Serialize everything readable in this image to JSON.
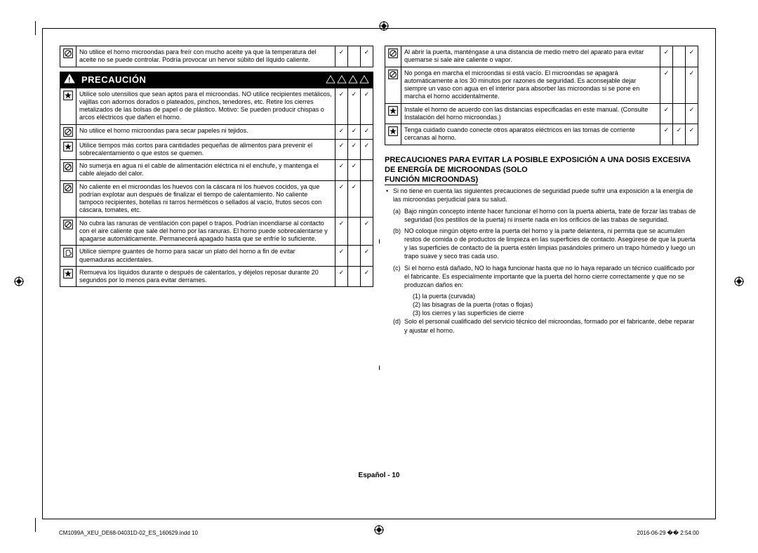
{
  "left_top_row": {
    "icon": "prohibit",
    "text": "No utilice el horno microondas para freír con mucho aceite ya que la temperatura del aceite no se puede controlar. Podría provocar un hervor súbito del líquido caliente.",
    "ticks": [
      "✓",
      "",
      "✓"
    ]
  },
  "caution_label": "PRECAUCIÓN",
  "left_rows": [
    {
      "icon": "star",
      "text": "Utilice solo utensilios que sean aptos para el microondas. NO utilice recipientes metálicos, vajillas con adornos dorados o plateados, pinchos, tenedores, etc.\nRetire los cierres metalizados de las bolsas de papel o de plástico.\nMotivo: Se pueden producir chispas o arcos eléctricos que dañen el horno.",
      "ticks": [
        "✓",
        "✓",
        "✓"
      ]
    },
    {
      "icon": "prohibit",
      "text": "No utilice el horno microondas para secar papeles ni tejidos.",
      "ticks": [
        "✓",
        "✓",
        "✓"
      ]
    },
    {
      "icon": "star",
      "text": "Utilice tiempos más cortos para cantidades pequeñas de alimentos para prevenir el sobrecalentamiento o que estos se quemen.",
      "ticks": [
        "✓",
        "✓",
        "✓"
      ]
    },
    {
      "icon": "prohibit",
      "text": "No sumerja en agua ni el cable de alimentación eléctrica ni el enchufe, y mantenga el cable alejado del calor.",
      "ticks": [
        "✓",
        "✓",
        ""
      ]
    },
    {
      "icon": "prohibit",
      "text": "No caliente en el microondas los huevos con la cáscara ni los huevos cocidos, ya que podrían explotar aun después de finalizar el tiempo de calentamiento. No caliente tampoco recipientes, botellas ni tarros herméticos o sellados al vacío, frutos secos con cáscara, tomates, etc.",
      "ticks": [
        "✓",
        "✓",
        ""
      ]
    },
    {
      "icon": "prohibit",
      "text": "No cubra las ranuras de ventilación con papel o trapos. Podrían incendiarse al contacto con el aire caliente que sale del horno por las ranuras. El horno puede sobrecalentarse y apagarse automáticamente. Permanecerá apagado hasta que se enfríe lo suficiente.",
      "ticks": [
        "✓",
        "",
        "✓"
      ]
    },
    {
      "icon": "glove",
      "text": "Utilice siempre guantes de horno para sacar un plato del horno a fin de evitar quemaduras accidentales.",
      "ticks": [
        "✓",
        "",
        "✓"
      ]
    },
    {
      "icon": "star",
      "text": "Remueva los líquidos durante o después de calentarlos, y déjelos reposar durante 20 segundos por lo menos para evitar derrames.",
      "ticks": [
        "✓",
        "",
        "✓"
      ]
    }
  ],
  "right_rows": [
    {
      "icon": "prohibit",
      "text": "Al abrir la puerta, manténgase a una distancia de medio metro del aparato para evitar quemarse si sale aire caliente o vapor.",
      "ticks": [
        "✓",
        "",
        "✓"
      ]
    },
    {
      "icon": "prohibit",
      "text": "No ponga en marcha el microondas si está vacío. El microondas se apagará automáticamente a los 30 minutos por razones de seguridad. Es aconsejable dejar siempre un vaso con agua en el interior para absorber las microondas si se pone en marcha el horno accidentalmente.",
      "ticks": [
        "✓",
        "",
        "✓"
      ]
    },
    {
      "icon": "star",
      "text": "Instale el horno de acuerdo con las distancias especificadas en este manual. (Consulte Instalación del horno microondas.)",
      "ticks": [
        "✓",
        "",
        "✓"
      ]
    },
    {
      "icon": "star",
      "text": "Tenga cuidado cuando conecte otros aparatos eléctricos en las tomas de corriente cercanas al horno.",
      "ticks": [
        "✓",
        "✓",
        "✓"
      ]
    }
  ],
  "exposure_title": "PRECAUCIONES PARA EVITAR LA POSIBLE EXPOSICIÓN A UNA DOSIS EXCESIVA DE ENERGÍA DE MICROONDAS (SOLO",
  "exposure_title_line3": "FUNCIÓN MICROONDAS)",
  "exposure_intro": "Si no tiene en cuenta las siguientes precauciones de seguridad puede sufrir una exposición a la energía de las microondas perjudicial para su salud.",
  "exposure_items": [
    {
      "label": "(a)",
      "text": "Bajo ningún concepto intente hacer funcionar el horno con la puerta abierta, trate de forzar las trabas de seguridad (los pestillos de la puerta) ni inserte nada en los orificios de las trabas de seguridad."
    },
    {
      "label": "(b)",
      "text": "NO coloque ningún objeto entre la puerta del horno y la parte delantera, ni permita que se acumulen restos de comida o de productos de limpieza en las superficies de contacto. Asegúrese de que la puerta y las superficies de contacto de la puerta estén limpias pasándoles primero un trapo húmedo y luego un trapo suave y seco tras cada uso."
    },
    {
      "label": "(c)",
      "text": "Si el horno está dañado, NO lo haga funcionar hasta que no lo haya reparado un técnico cualificado por el fabricante. Es especialmente importante que la puerta del horno cierre correctamente y que no se produzcan daños en:"
    },
    {
      "label": "(d)",
      "text": "Solo el personal cualificado del servicio técnico del microondas, formado por el fabricante, debe reparar y ajustar el horno."
    }
  ],
  "exposure_sublist": [
    "(1) la puerta (curvada)",
    "(2) las bisagras de la puerta (rotas o flojas)",
    "(3) los cierres y las superficies de cierre"
  ],
  "footer_center": "Español - 10",
  "footer_left": "CM1099A_XEU_DE68-04031D-02_ES_160629.indd   10",
  "footer_right": "2016-06-29   �� 2:54:00"
}
